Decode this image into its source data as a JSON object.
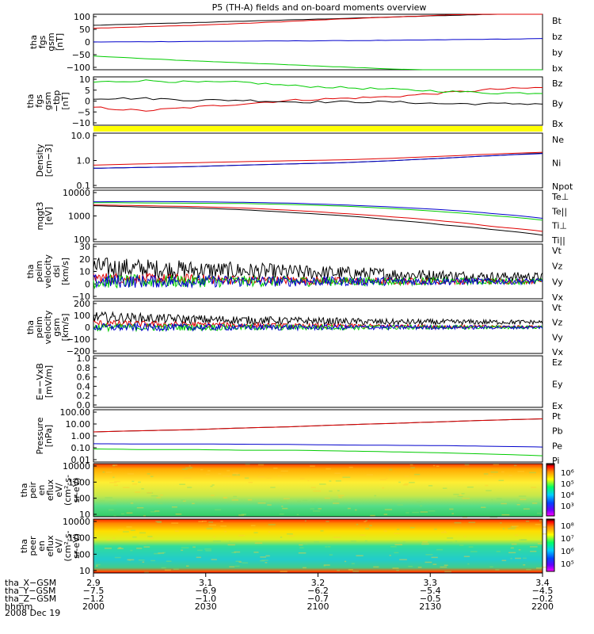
{
  "title": "P5 (TH-A) fields and on-board moments overview",
  "date_label": "2008 Dec 19",
  "colors": {
    "black": "#000000",
    "red": "#e00000",
    "green": "#00cc00",
    "blue": "#0000cc",
    "yellow": "#ffff00"
  },
  "colorbar_labels": {
    "ion": [
      "10⁶",
      "10⁵",
      "10⁴",
      "10³"
    ],
    "electron": [
      "10⁸",
      "10⁷",
      "10⁶",
      "10⁵"
    ]
  },
  "xaxis": {
    "rows": [
      {
        "label": "tha_X−GSM",
        "values": [
          "2.9",
          "3.1",
          "3.2",
          "3.3",
          "3.4"
        ]
      },
      {
        "label": "tha_Y−GSM",
        "values": [
          "−7.5",
          "−6.9",
          "−6.2",
          "−5.4",
          "−4.5"
        ]
      },
      {
        "label": "tha_Z−GSM",
        "values": [
          "−1.2",
          "−1.0",
          "−0.7",
          "−0.5",
          "−0.2"
        ]
      },
      {
        "label": "hhmm",
        "values": [
          "2000",
          "2030",
          "2100",
          "2130",
          "2200"
        ]
      }
    ]
  },
  "chart_data": [
    {
      "type": "line",
      "ylabel": [
        "tha",
        "fgs",
        "gsm",
        "[nT]"
      ],
      "ylim": [
        -100,
        100
      ],
      "yticks": [
        "100",
        "50",
        "0",
        "−50",
        "−100"
      ],
      "series": [
        {
          "name": "Bt",
          "color": "#000000",
          "values": [
            60,
            65,
            70,
            75,
            80,
            85,
            90,
            95,
            100,
            103
          ]
        },
        {
          "name": "bz",
          "color": "#e00000",
          "values": [
            50,
            55,
            60,
            67,
            75,
            83,
            90,
            97,
            102,
            105
          ]
        },
        {
          "name": "by",
          "color": "#00cc00",
          "values": [
            -50,
            -60,
            -68,
            -75,
            -83,
            -90,
            -97,
            -103,
            -107,
            -107
          ]
        },
        {
          "name": "bx",
          "color": "#0000cc",
          "values": [
            0,
            1,
            2,
            3,
            4,
            5,
            6,
            8,
            10,
            12
          ]
        }
      ]
    },
    {
      "type": "line",
      "ylabel": [
        "tha",
        "fgs",
        "gsm",
        "−tbp",
        "[nT]"
      ],
      "ylim": [
        -15,
        12
      ],
      "yticks": [
        "10",
        "5",
        "0",
        "−5",
        "−10"
      ],
      "series": [
        {
          "name": "Bz",
          "color": "#e00000",
          "values": [
            -5,
            -7,
            -5,
            -3,
            -1,
            0,
            1,
            3,
            5,
            6
          ]
        },
        {
          "name": "By",
          "color": "#00cc00",
          "values": [
            9,
            10,
            9,
            9,
            7,
            6,
            5,
            4,
            3,
            3
          ]
        },
        {
          "name": "Bx",
          "color": "#000000",
          "values": [
            0,
            0,
            -1,
            -1,
            -2,
            -2,
            -2,
            -3,
            -3,
            -3
          ]
        }
      ]
    },
    {
      "type": "line",
      "ylabel": [
        "Density",
        "[cm−3]"
      ],
      "scale": "log",
      "ylim": [
        0.1,
        15
      ],
      "yticks": [
        "10.0",
        "1.0",
        "0.1"
      ],
      "series": [
        {
          "name": "Ne",
          "color": "#e00000",
          "values": [
            0.8,
            0.9,
            1.0,
            1.1,
            1.2,
            1.3,
            1.5,
            1.8,
            2.2,
            2.6
          ]
        },
        {
          "name": "Ni",
          "color": "#000000",
          "values": [
            0.6,
            0.65,
            0.7,
            0.8,
            0.9,
            1.0,
            1.2,
            1.5,
            1.9,
            2.4
          ]
        },
        {
          "name": "Npot",
          "color": "#0000cc",
          "values": [
            0.6,
            0.65,
            0.7,
            0.8,
            0.9,
            1.0,
            1.2,
            1.5,
            1.9,
            2.3
          ]
        }
      ]
    },
    {
      "type": "line",
      "ylabel": [
        "mqgt3",
        "[eV]"
      ],
      "scale": "log",
      "ylim": [
        50,
        12000
      ],
      "yticks": [
        "10000",
        "1000",
        "100"
      ],
      "series": [
        {
          "name": "Te⊥",
          "color": "#e00000",
          "values": [
            2500,
            2300,
            2100,
            1800,
            1400,
            1000,
            700,
            450,
            250,
            150
          ]
        },
        {
          "name": "Te||",
          "color": "#000000",
          "values": [
            2300,
            2000,
            1800,
            1500,
            1100,
            800,
            500,
            300,
            180,
            100
          ]
        },
        {
          "name": "Ti⊥",
          "color": "#00cc00",
          "values": [
            3200,
            3100,
            3000,
            2900,
            2600,
            2200,
            1700,
            1200,
            800,
            500
          ]
        },
        {
          "name": "Ti||",
          "color": "#0000cc",
          "values": [
            3500,
            3600,
            3500,
            3300,
            3000,
            2500,
            2000,
            1500,
            1000,
            600
          ]
        }
      ]
    },
    {
      "type": "line",
      "ylabel": [
        "tha",
        "peim",
        "velocity",
        "dsl",
        "[km/s]"
      ],
      "ylim": [
        -15,
        32
      ],
      "yticks": [
        "30",
        "20",
        "10",
        "0",
        "−10"
      ],
      "series": [
        {
          "name": "Vt",
          "color": "#000000",
          "values": [
            12,
            11,
            10,
            9,
            8,
            7,
            6,
            5,
            4,
            4
          ]
        },
        {
          "name": "Vz",
          "color": "#e00000",
          "values": [
            3,
            2,
            2,
            1,
            1,
            0,
            0,
            0,
            0,
            0
          ]
        },
        {
          "name": "Vy",
          "color": "#00cc00",
          "values": [
            0,
            0,
            0,
            0,
            0,
            0,
            0,
            0,
            0,
            0
          ]
        },
        {
          "name": "Vx",
          "color": "#0000cc",
          "values": [
            0,
            0,
            0,
            0,
            0,
            0,
            0,
            0,
            0,
            0
          ]
        }
      ]
    },
    {
      "type": "line",
      "ylabel": [
        "tha",
        "peim",
        "velocity",
        "gsm",
        "[km/s]"
      ],
      "ylim": [
        -200,
        200
      ],
      "yticks": [
        "200",
        "100",
        "0",
        "−100",
        "−200"
      ],
      "series": [
        {
          "name": "Vt",
          "color": "#000000",
          "values": [
            80,
            70,
            60,
            55,
            50,
            45,
            40,
            40,
            40,
            40
          ]
        },
        {
          "name": "Vz",
          "color": "#e00000",
          "values": [
            30,
            25,
            20,
            15,
            10,
            10,
            10,
            5,
            5,
            5
          ]
        },
        {
          "name": "Vy",
          "color": "#00cc00",
          "values": [
            0,
            0,
            0,
            0,
            0,
            0,
            0,
            0,
            0,
            0
          ]
        },
        {
          "name": "Vx",
          "color": "#0000cc",
          "values": [
            0,
            0,
            0,
            0,
            0,
            0,
            0,
            0,
            0,
            0
          ]
        }
      ]
    },
    {
      "type": "line",
      "ylabel": [
        "E=−VxB",
        "[mV/m]"
      ],
      "ylim": [
        0,
        1
      ],
      "yticks": [
        "1.0",
        "0.8",
        "0.6",
        "0.4",
        "0.2",
        "0.0"
      ],
      "series": [
        {
          "name": "Ez",
          "color": "#e00000",
          "values": []
        },
        {
          "name": "Ey",
          "color": "#00cc00",
          "values": []
        },
        {
          "name": "Ex",
          "color": "#0000cc",
          "values": []
        }
      ]
    },
    {
      "type": "line",
      "ylabel": [
        "Pressure",
        "[nPa]"
      ],
      "scale": "log",
      "ylim": [
        0.01,
        100
      ],
      "yticks": [
        "100.00",
        "10.00",
        "1.00",
        "0.10",
        "0.01"
      ],
      "series": [
        {
          "name": "Pt",
          "color": "#000000",
          "values": [
            2,
            2.5,
            3,
            4,
            5,
            7,
            9,
            12,
            16,
            20
          ]
        },
        {
          "name": "Pb",
          "color": "#e00000",
          "values": [
            2,
            2.5,
            3,
            4,
            5,
            7,
            9,
            12,
            16,
            20
          ]
        },
        {
          "name": "Pe",
          "color": "#00cc00",
          "values": [
            0.1,
            0.09,
            0.09,
            0.08,
            0.08,
            0.07,
            0.06,
            0.05,
            0.04,
            0.03
          ]
        },
        {
          "name": "Pi",
          "color": "#0000cc",
          "values": [
            0.25,
            0.24,
            0.24,
            0.23,
            0.22,
            0.2,
            0.19,
            0.18,
            0.16,
            0.14
          ]
        }
      ]
    },
    {
      "type": "heatmap",
      "ylabel": [
        "tha",
        "peir",
        "en",
        "eflux",
        "eV/",
        "(cm²-s-",
        "sr-eV)"
      ],
      "scale": "log",
      "ylim": [
        7,
        20000
      ],
      "yticks": [
        "10000",
        "1000",
        "100",
        "10"
      ]
    },
    {
      "type": "heatmap",
      "ylabel": [
        "tha",
        "peer",
        "en",
        "eflux",
        "eV/",
        "(cm²-s-",
        "sr-eV)"
      ],
      "scale": "log",
      "ylim": [
        7,
        20000
      ],
      "yticks": [
        "10000",
        "1000",
        "100",
        "10"
      ]
    }
  ]
}
